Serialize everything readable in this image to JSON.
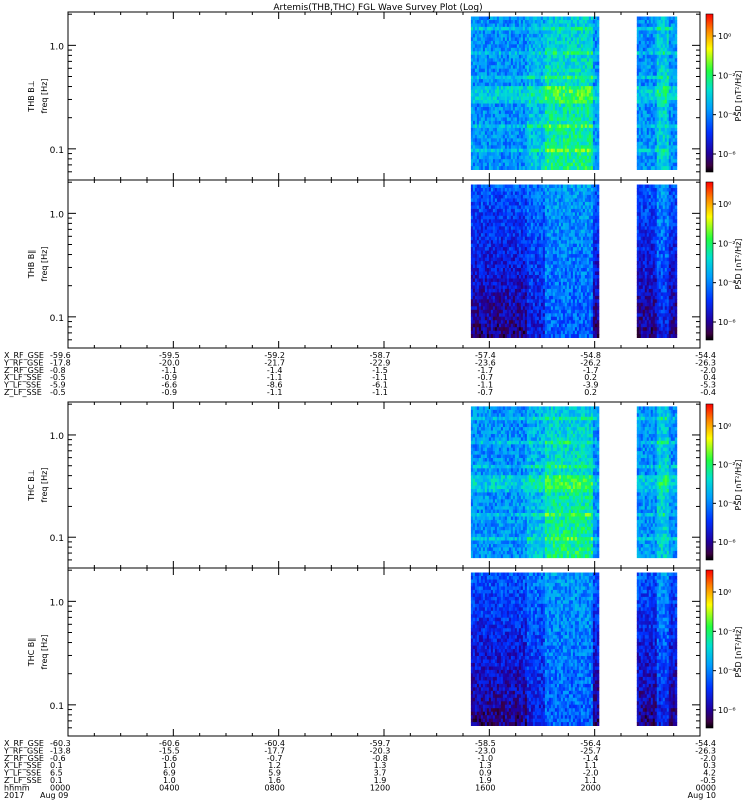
{
  "title": "Artemis(THB,THC) FGL Wave Survey Plot (Log)",
  "chart_data": {
    "type": "heatmap",
    "title": "Artemis(THB,THC) FGL Wave Survey Plot (Log)",
    "x_axis": {
      "label_rows": [
        "hhmm",
        "2017"
      ],
      "ticks": [
        {
          "time": "0000",
          "date": "Aug 09"
        },
        {
          "time": "0400",
          "date": ""
        },
        {
          "time": "0800",
          "date": ""
        },
        {
          "time": "1200",
          "date": ""
        },
        {
          "time": "1600",
          "date": ""
        },
        {
          "time": "2000",
          "date": ""
        },
        {
          "time": "0000",
          "date": "Aug 10"
        }
      ],
      "range_hours": [
        0,
        24
      ]
    },
    "y_axis": {
      "label": "freq [Hz]",
      "scale": "log",
      "ticks": [
        "1.0",
        "0.1"
      ],
      "range": [
        0.05,
        2.1
      ]
    },
    "colorbar": {
      "label": "PSD [nT²/Hz]",
      "scale": "log",
      "ticks": [
        "10⁰",
        "10⁻²",
        "10⁻⁴",
        "10⁻⁶"
      ]
    },
    "coverage": {
      "segments_hours": [
        [
          15.3,
          20.1
        ],
        [
          21.6,
          23.1
        ]
      ],
      "frequency_range_hz": [
        0.063,
        1.9
      ]
    },
    "panels": [
      {
        "name": "THB B⊥",
        "ylabel": "THB B⊥",
        "component": "perp",
        "spacecraft": "THB"
      },
      {
        "name": "THB B∥",
        "ylabel": "THB B∥",
        "component": "par",
        "spacecraft": "THB"
      },
      {
        "name": "THC B⊥",
        "ylabel": "THC B⊥",
        "component": "perp",
        "spacecraft": "THC"
      },
      {
        "name": "THC B∥",
        "ylabel": "THC B∥",
        "component": "par",
        "spacecraft": "THC"
      }
    ]
  },
  "ephemeris_thb": {
    "rows": [
      {
        "label": "X_RF_GSE",
        "values": [
          "-59.6",
          "-59.5",
          "-59.2",
          "-58.7",
          "-57.4",
          "-54.8",
          "-54.4"
        ]
      },
      {
        "label": "Y_RF_GSE",
        "values": [
          "-17.8",
          "-20.0",
          "-21.7",
          "-22.9",
          "-23.6",
          "-26.2",
          "-26.3"
        ]
      },
      {
        "label": "Z_RF_GSE",
        "values": [
          "-0.8",
          "-1.1",
          "-1.4",
          "-1.5",
          "-1.7",
          "-1.7",
          "-2.0"
        ]
      },
      {
        "label": "X_LF_SSE",
        "values": [
          "-0.5",
          "-0.9",
          "-1.1",
          "-1.1",
          "-0.7",
          "0.2",
          "0.4"
        ]
      },
      {
        "label": "Y_LF_SSE",
        "values": [
          "-5.9",
          "-6.6",
          "-8.6",
          "-6.1",
          "-1.1",
          "-3.9",
          "-5.3"
        ]
      },
      {
        "label": "Z_LF_SSE",
        "values": [
          "-0.5",
          "-0.9",
          "-1.1",
          "-1.1",
          "-0.7",
          "0.2",
          "-0.4"
        ]
      }
    ]
  },
  "ephemeris_thc": {
    "rows": [
      {
        "label": "X_RF_GSE",
        "values": [
          "-60.3",
          "-60.6",
          "-60.4",
          "-59.7",
          "-58.5",
          "-56.4",
          "-54.4"
        ]
      },
      {
        "label": "Y_RF_GSE",
        "values": [
          "-13.8",
          "-15.5",
          "-17.7",
          "-20.3",
          "-23.0",
          "-25.7",
          "-26.3"
        ]
      },
      {
        "label": "Z_RF_GSE",
        "values": [
          "-0.6",
          "-0.6",
          "-0.7",
          "-0.8",
          "-1.0",
          "-1.4",
          "-2.0"
        ]
      },
      {
        "label": "X_LF_SSE",
        "values": [
          "0.1",
          "1.0",
          "1.2",
          "1.3",
          "1.3",
          "1.1",
          "0.3"
        ]
      },
      {
        "label": "Y_LF_SSE",
        "values": [
          "6.5",
          "6.9",
          "5.9",
          "3.7",
          "0.9",
          "-2.0",
          "4.2"
        ]
      },
      {
        "label": "Z_LF_SSE",
        "values": [
          "0.1",
          "1.0",
          "1.6",
          "1.9",
          "1.9",
          "1.1",
          "-0.5"
        ]
      }
    ]
  }
}
